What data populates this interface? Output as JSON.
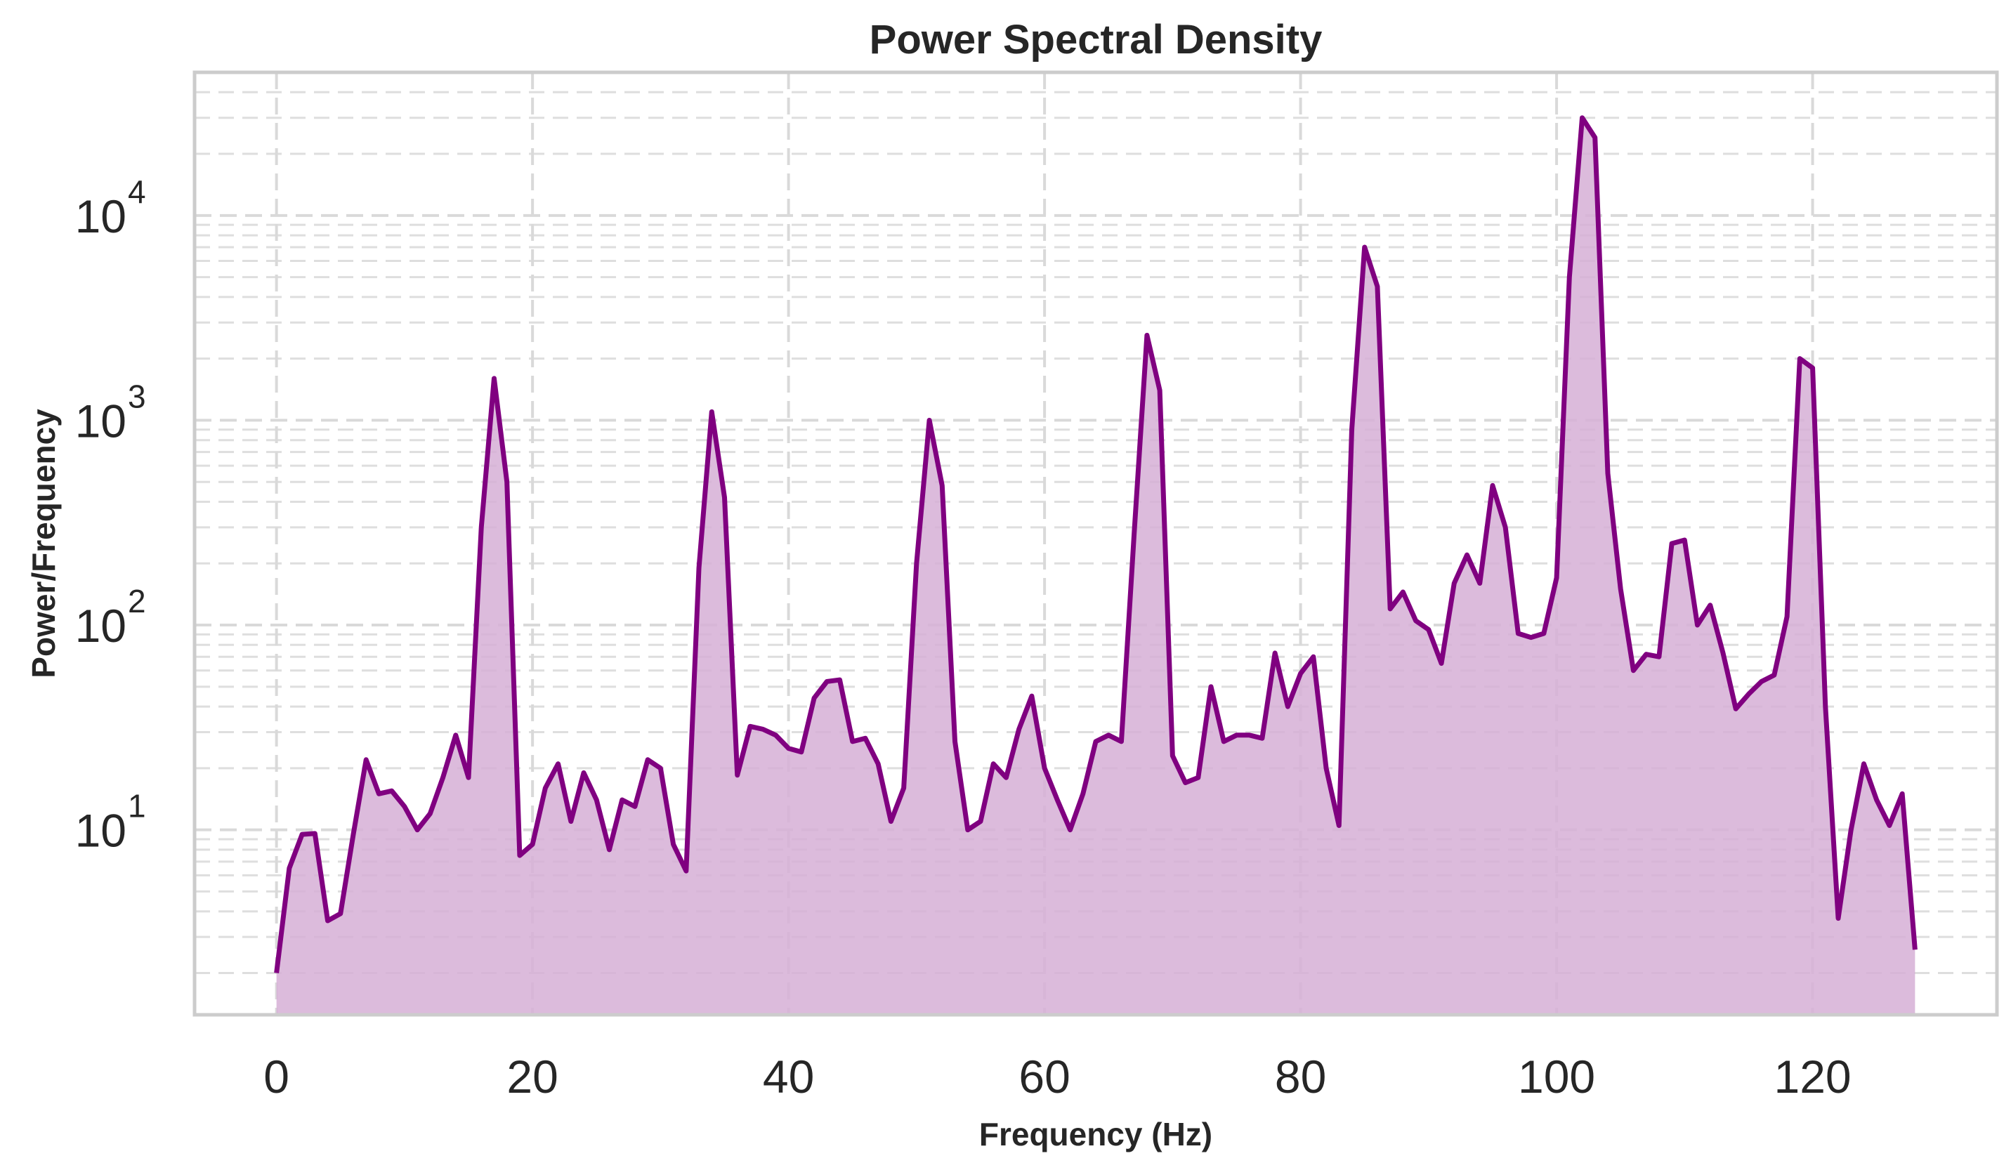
{
  "chart_data": {
    "type": "area",
    "title": "Power Spectral Density",
    "xlabel": "Frequency (Hz)",
    "ylabel": "Power/Frequency",
    "yscale": "log",
    "xlim": [
      -6.4,
      134.4
    ],
    "ylim": [
      1.25,
      50000
    ],
    "xticks": [
      0,
      20,
      40,
      60,
      80,
      100,
      120
    ],
    "yticks": [
      {
        "base": "10",
        "exp": "1",
        "value": 10
      },
      {
        "base": "10",
        "exp": "2",
        "value": 100
      },
      {
        "base": "10",
        "exp": "3",
        "value": 1000
      },
      {
        "base": "10",
        "exp": "4",
        "value": 10000
      }
    ],
    "grid": true,
    "line_color": "#800080",
    "fill_color": "#d6afd6",
    "series": [
      {
        "x": [
          0,
          1,
          2,
          3,
          4,
          5,
          6,
          7,
          8,
          9,
          10,
          11,
          12,
          13,
          14,
          15,
          16,
          17,
          18,
          19,
          20,
          21,
          22,
          23,
          24,
          25,
          26,
          27,
          28,
          29,
          30,
          31,
          32,
          33,
          34,
          35,
          36,
          37,
          38,
          39,
          40,
          41,
          42,
          43,
          44,
          45,
          46,
          47,
          48,
          49,
          50,
          51,
          52,
          53,
          54,
          55,
          56,
          57,
          58,
          59,
          60,
          61,
          62,
          63,
          64,
          65,
          66,
          67,
          68,
          69,
          70,
          71,
          72,
          73,
          74,
          75,
          76,
          77,
          78,
          79,
          80,
          81,
          82,
          83,
          84,
          85,
          86,
          87,
          88,
          89,
          90,
          91,
          92,
          93,
          94,
          95,
          96,
          97,
          98,
          99,
          100,
          101,
          102,
          103,
          104,
          105,
          106,
          107,
          108,
          109,
          110,
          111,
          112,
          113,
          114,
          115,
          116,
          117,
          118,
          119,
          120,
          121,
          122,
          123,
          124,
          125,
          126,
          127,
          128
        ],
        "y": [
          2,
          6.5,
          9.5,
          9.6,
          3.6,
          3.9,
          9.5,
          22,
          15,
          15.5,
          13,
          10,
          12,
          18,
          29,
          18,
          300,
          1600,
          500,
          7.5,
          8.5,
          16,
          21,
          11,
          19,
          14,
          8,
          14,
          13,
          22,
          20,
          8.5,
          6.3,
          190,
          1100,
          420,
          18.5,
          32,
          31,
          29,
          25,
          24,
          44,
          53,
          54,
          27,
          28,
          21,
          11,
          16,
          200,
          1000,
          480,
          27,
          10,
          11,
          21,
          18,
          31,
          45,
          20,
          14,
          10,
          15,
          27,
          29,
          27,
          280,
          2600,
          1400,
          23,
          17,
          18,
          50,
          27,
          29,
          29,
          28,
          73,
          40,
          58,
          70,
          20,
          10.5,
          900,
          7000,
          4500,
          120,
          145,
          105,
          95,
          65,
          160,
          220,
          160,
          480,
          300,
          91,
          87,
          91,
          170,
          5000,
          30000,
          24000,
          550,
          150,
          60,
          72,
          70,
          250,
          260,
          100,
          125,
          73,
          39,
          46,
          53,
          57,
          110,
          2000,
          1800,
          40,
          3.7,
          10,
          21,
          14,
          10.5,
          15,
          2.6
        ]
      }
    ]
  }
}
